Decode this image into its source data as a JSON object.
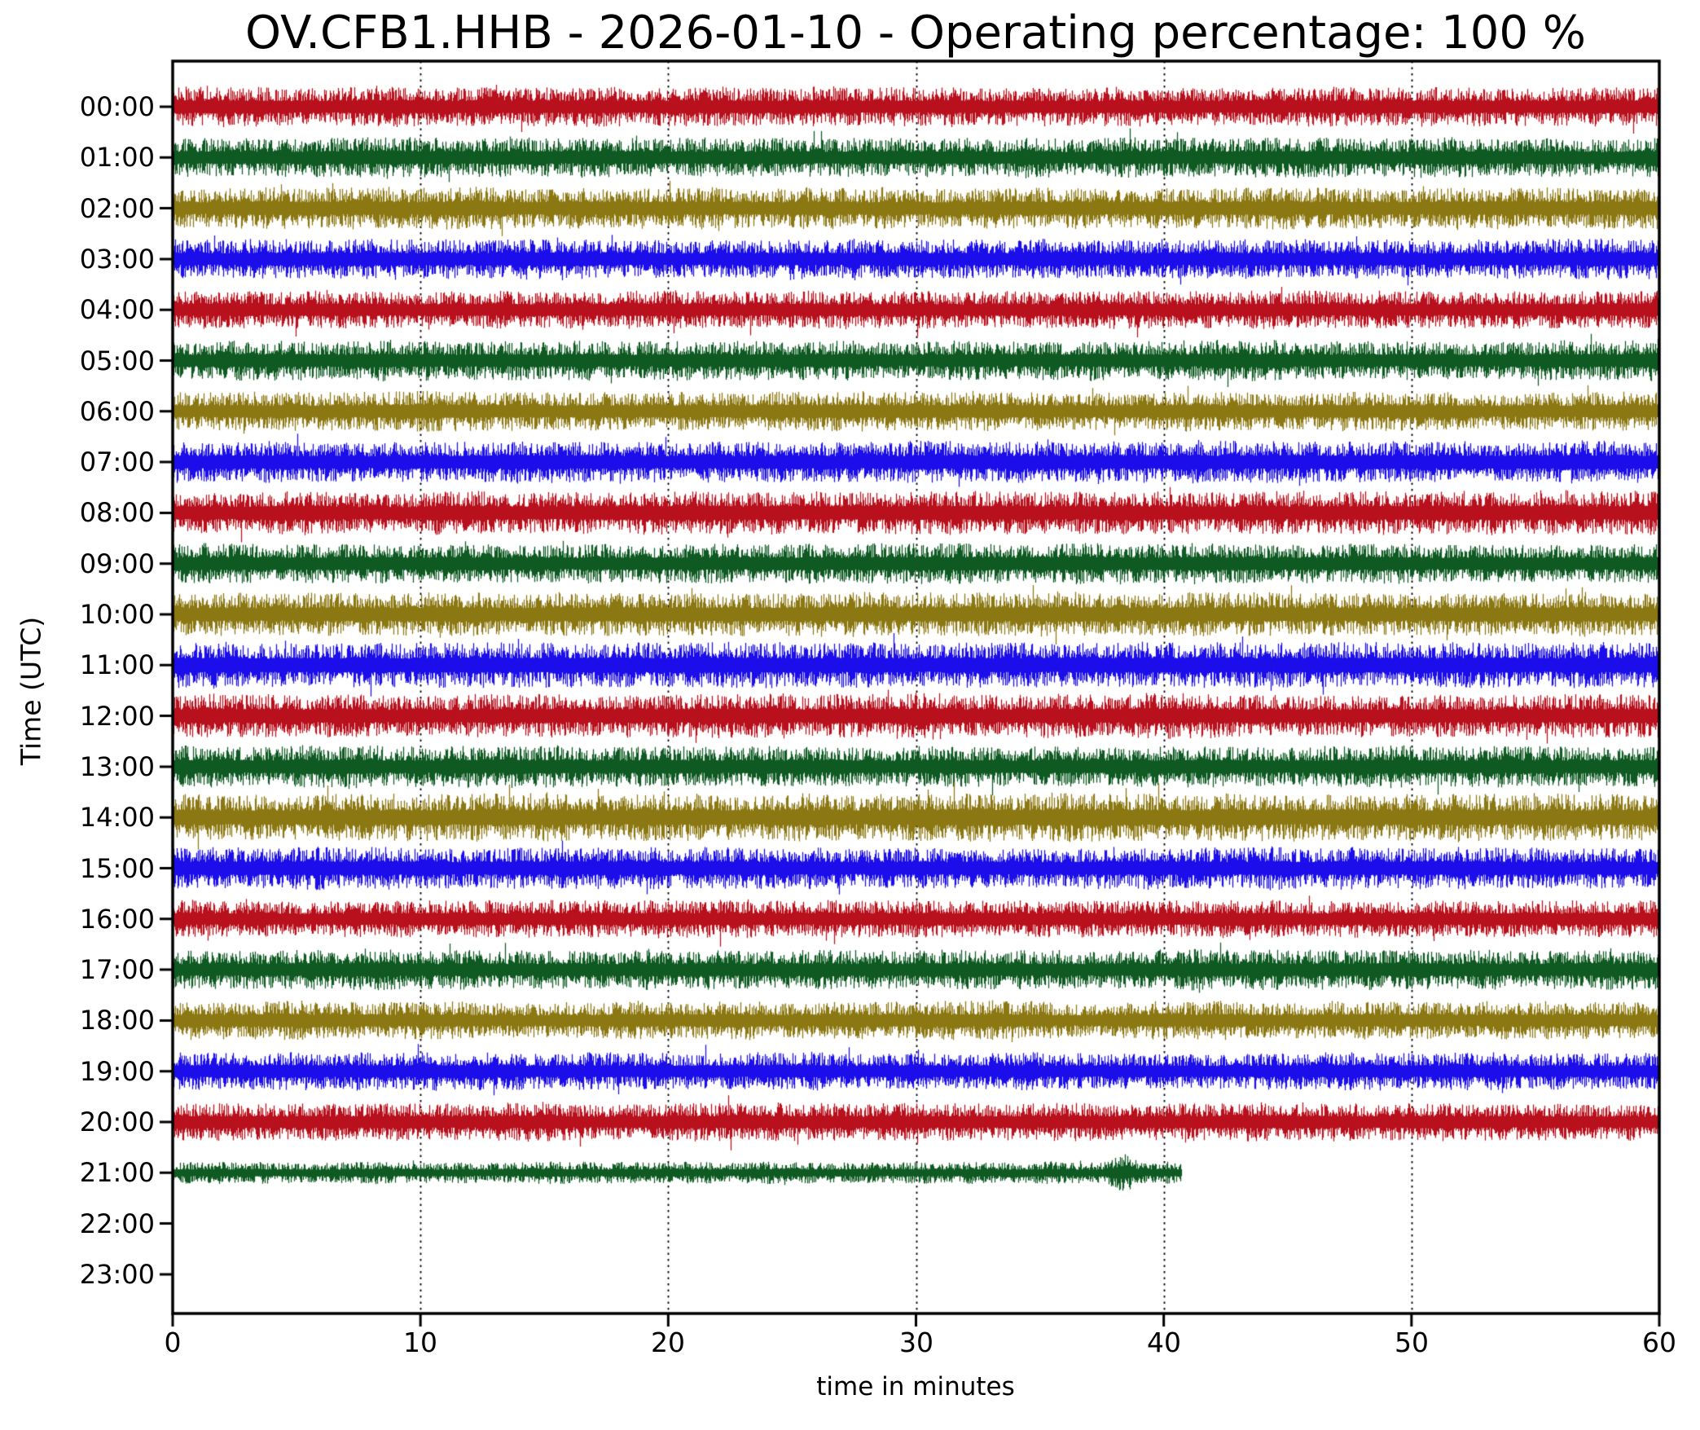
{
  "chart_data": {
    "type": "line",
    "subtype": "seismic-helicorder-dayplot",
    "title": "OV.CFB1.HHB - 2026-01-10 - Operating percentage: 100 %",
    "station_id": "OV.CFB1.HHB",
    "date": "2026-01-10",
    "operating_percentage": "100 %",
    "xlabel": "time in minutes",
    "ylabel": "Time (UTC)",
    "xlim": [
      0,
      60
    ],
    "xticks": [
      0,
      10,
      20,
      30,
      40,
      50,
      60
    ],
    "grid_minutes": [
      10,
      20,
      30,
      40,
      50
    ],
    "grid_style": "dotted",
    "legend": "none",
    "interval_minutes": 60,
    "trace_colors": {
      "red": "#b8101c",
      "green": "#0e5a22",
      "olive": "#8c7812",
      "blue": "#1b0eea"
    },
    "color_cycle": [
      "red",
      "green",
      "olive",
      "blue"
    ],
    "rows": [
      {
        "label": "00:00",
        "color": "red",
        "start_min": 0,
        "end_min": 60,
        "amp": 1.0
      },
      {
        "label": "01:00",
        "color": "green",
        "start_min": 0,
        "end_min": 60,
        "amp": 1.0
      },
      {
        "label": "02:00",
        "color": "olive",
        "start_min": 0,
        "end_min": 60,
        "amp": 1.05
      },
      {
        "label": "03:00",
        "color": "blue",
        "start_min": 0,
        "end_min": 60,
        "amp": 1.0
      },
      {
        "label": "04:00",
        "color": "red",
        "start_min": 0,
        "end_min": 60,
        "amp": 0.95
      },
      {
        "label": "05:00",
        "color": "green",
        "start_min": 0,
        "end_min": 60,
        "amp": 1.0
      },
      {
        "label": "06:00",
        "color": "olive",
        "start_min": 0,
        "end_min": 60,
        "amp": 1.0
      },
      {
        "label": "07:00",
        "color": "blue",
        "start_min": 0,
        "end_min": 60,
        "amp": 1.05
      },
      {
        "label": "08:00",
        "color": "red",
        "start_min": 0,
        "end_min": 60,
        "amp": 1.1
      },
      {
        "label": "09:00",
        "color": "green",
        "start_min": 0,
        "end_min": 60,
        "amp": 1.0
      },
      {
        "label": "10:00",
        "color": "olive",
        "start_min": 0,
        "end_min": 60,
        "amp": 1.1
      },
      {
        "label": "11:00",
        "color": "blue",
        "start_min": 0,
        "end_min": 60,
        "amp": 1.15
      },
      {
        "label": "12:00",
        "color": "red",
        "start_min": 0,
        "end_min": 60,
        "amp": 1.1
      },
      {
        "label": "13:00",
        "color": "green",
        "start_min": 0,
        "end_min": 60,
        "amp": 1.05
      },
      {
        "label": "14:00",
        "color": "olive",
        "start_min": 0,
        "end_min": 60,
        "amp": 1.2
      },
      {
        "label": "15:00",
        "color": "blue",
        "start_min": 0,
        "end_min": 60,
        "amp": 1.05
      },
      {
        "label": "16:00",
        "color": "red",
        "start_min": 0,
        "end_min": 60,
        "amp": 0.95
      },
      {
        "label": "17:00",
        "color": "green",
        "start_min": 0,
        "end_min": 60,
        "amp": 1.0
      },
      {
        "label": "18:00",
        "color": "olive",
        "start_min": 0,
        "end_min": 60,
        "amp": 0.95
      },
      {
        "label": "19:00",
        "color": "blue",
        "start_min": 0,
        "end_min": 60,
        "amp": 0.95
      },
      {
        "label": "20:00",
        "color": "red",
        "start_min": 0,
        "end_min": 60,
        "amp": 0.95
      },
      {
        "label": "21:00",
        "color": "green",
        "start_min": 0,
        "end_min": 40.7,
        "amp": 0.55,
        "bump_min": 38.3
      },
      {
        "label": "22:00",
        "color": "olive",
        "start_min": null,
        "end_min": null,
        "amp": 0
      },
      {
        "label": "23:00",
        "color": "blue",
        "start_min": null,
        "end_min": null,
        "amp": 0
      }
    ]
  }
}
